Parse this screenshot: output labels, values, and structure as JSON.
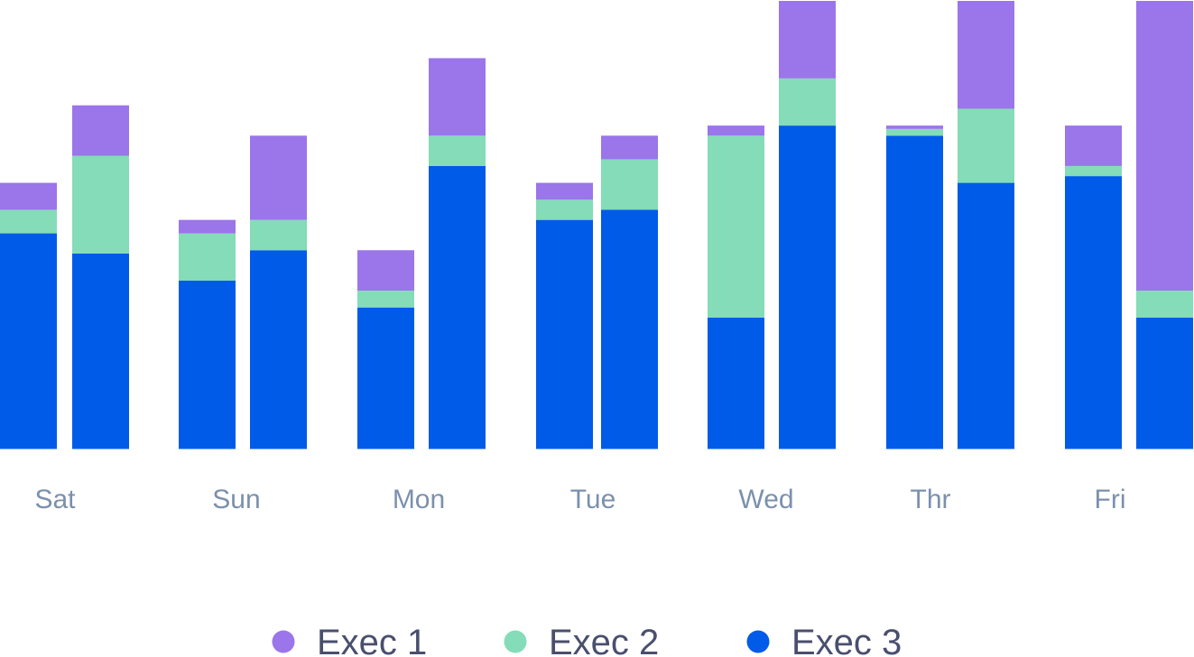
{
  "chart_data": {
    "type": "bar",
    "stacked": true,
    "bars_per_category": 2,
    "categories": [
      "Sat",
      "Sun",
      "Mon",
      "Tue",
      "Wed",
      "Thr",
      "Fri"
    ],
    "series": [
      {
        "name": "Exec 3",
        "color": "#005be9",
        "values": [
          [
            64,
            58
          ],
          [
            50,
            59
          ],
          [
            42,
            84
          ],
          [
            68,
            71
          ],
          [
            39,
            96
          ],
          [
            93,
            79
          ],
          [
            81,
            39
          ]
        ]
      },
      {
        "name": "Exec 2",
        "color": "#84dcb8",
        "values": [
          [
            7,
            29
          ],
          [
            14,
            9
          ],
          [
            5,
            9
          ],
          [
            6,
            15
          ],
          [
            54,
            14
          ],
          [
            2,
            22
          ],
          [
            3,
            8
          ]
        ]
      },
      {
        "name": "Exec 1",
        "color": "#9b75ea",
        "values": [
          [
            8,
            15
          ],
          [
            4,
            25
          ],
          [
            12,
            23
          ],
          [
            5,
            7
          ],
          [
            3,
            23
          ],
          [
            1,
            32
          ],
          [
            12,
            86
          ]
        ]
      }
    ],
    "ylim": [
      0,
      133
    ],
    "grid": false,
    "legend_position": "bottom"
  }
}
